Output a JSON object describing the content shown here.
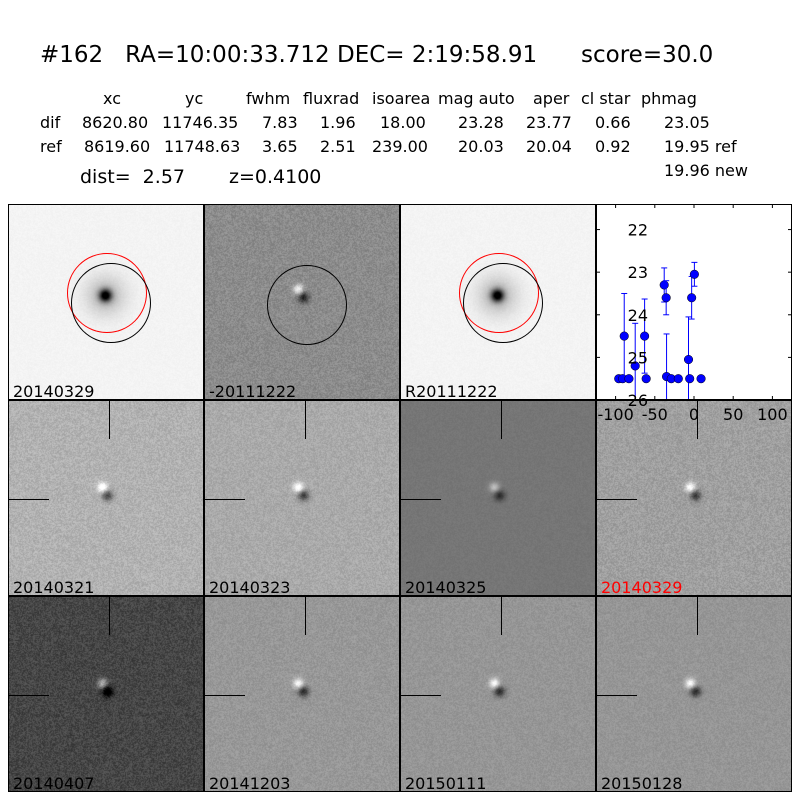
{
  "title": {
    "id": "#162",
    "ra": "RA=10:00:33.712",
    "dec": "DEC= 2:19:58.91",
    "score": "score=30.0"
  },
  "table": {
    "columns": [
      "xc",
      "yc",
      "fwhm",
      "fluxrad",
      "isoarea",
      "mag auto",
      "aper",
      "cl star",
      "phmag"
    ],
    "rows": [
      {
        "label": "dif",
        "values": [
          "8620.80",
          "11746.35",
          "7.83",
          "1.96",
          "18.00",
          "23.28",
          "23.77",
          "0.66",
          "23.05"
        ]
      },
      {
        "label": "ref",
        "values": [
          "8619.60",
          "11748.63",
          "3.65",
          "2.51",
          "239.00",
          "20.03",
          "20.04",
          "0.92",
          "19.95 ref"
        ]
      }
    ],
    "phmag_new": "19.96 new",
    "dist": "dist=  2.57",
    "z": "z=0.4100"
  },
  "stamps": [
    {
      "label": "20140329",
      "label_color": "#000000"
    },
    {
      "label": "-20111222",
      "label_color": "#000000"
    },
    {
      "label": "R20111222",
      "label_color": "#000000"
    },
    {
      "label": "20140321",
      "label_color": "#000000"
    },
    {
      "label": "20140323",
      "label_color": "#000000"
    },
    {
      "label": "20140325",
      "label_color": "#000000"
    },
    {
      "label": "20140329",
      "label_color": "#ff0000"
    },
    {
      "label": "20140407",
      "label_color": "#000000"
    },
    {
      "label": "20141203",
      "label_color": "#000000"
    },
    {
      "label": "20150111",
      "label_color": "#000000"
    },
    {
      "label": "20150128",
      "label_color": "#000000"
    }
  ],
  "chart_data": {
    "type": "scatter",
    "xlim": [
      -125,
      125
    ],
    "ylim": [
      21.4,
      26
    ],
    "y_inverted": true,
    "xticks": [
      "-100",
      "-50",
      "0",
      "50",
      "100"
    ],
    "yticks": [
      "22",
      "23",
      "24",
      "25",
      "26"
    ],
    "color": "#0000ff",
    "points": [
      {
        "x": -96,
        "y": 25.5,
        "err": 0.05
      },
      {
        "x": -91,
        "y": 25.5,
        "err": 0.05
      },
      {
        "x": -89,
        "y": 24.5,
        "err": 1.0
      },
      {
        "x": -83,
        "y": 25.5,
        "err": 0.05
      },
      {
        "x": -75,
        "y": 25.2,
        "err": 1.0
      },
      {
        "x": -63,
        "y": 24.5,
        "err": 0.87
      },
      {
        "x": -61,
        "y": 25.5,
        "err": 0.05
      },
      {
        "x": -38,
        "y": 23.3,
        "err": 0.4
      },
      {
        "x": -35.5,
        "y": 23.6,
        "err": 0.4
      },
      {
        "x": -35,
        "y": 25.45,
        "err": 1.0
      },
      {
        "x": -29,
        "y": 25.5,
        "err": 0.05
      },
      {
        "x": -20,
        "y": 25.5,
        "err": 0.05
      },
      {
        "x": -7,
        "y": 25.05,
        "err": 1.0
      },
      {
        "x": -5.5,
        "y": 25.5,
        "err": 0.05
      },
      {
        "x": -3,
        "y": 23.6,
        "err": 0.5
      },
      {
        "x": 0.5,
        "y": 23.05,
        "err": 0.28
      },
      {
        "x": 9,
        "y": 25.5,
        "err": 0.05
      }
    ]
  }
}
